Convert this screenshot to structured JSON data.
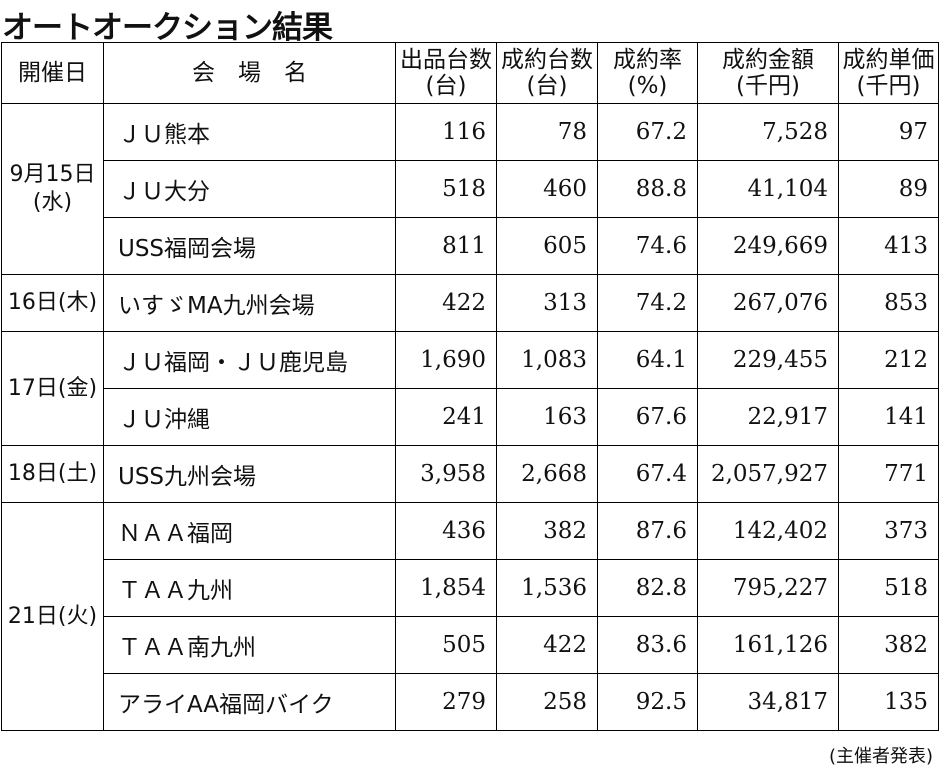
{
  "title": "オートオークション結果",
  "header": [
    [
      "開催日"
    ],
    [
      "会　場　名"
    ],
    [
      "出品台数",
      "(台)"
    ],
    [
      "成約台数",
      "(台)"
    ],
    [
      "成約率",
      "(%)"
    ],
    [
      "成約金額",
      "(千円)"
    ],
    [
      "成約単価",
      "(千円)"
    ]
  ],
  "groups": [
    {
      "date": [
        "9月15日",
        "(水)"
      ],
      "rows": [
        [
          "ＪＵ熊本",
          "116",
          "78",
          "67.2",
          "7,528",
          "97"
        ],
        [
          "ＪＵ大分",
          "518",
          "460",
          "88.8",
          "41,104",
          "89"
        ],
        [
          "USS福岡会場",
          "811",
          "605",
          "74.6",
          "249,669",
          "413"
        ]
      ]
    },
    {
      "date": [
        "16日(木)"
      ],
      "rows": [
        [
          "いすゞMA九州会場",
          "422",
          "313",
          "74.2",
          "267,076",
          "853"
        ]
      ]
    },
    {
      "date": [
        "17日(金)"
      ],
      "rows": [
        [
          "ＪＵ福岡・ＪＵ鹿児島",
          "1,690",
          "1,083",
          "64.1",
          "229,455",
          "212"
        ],
        [
          "ＪＵ沖縄",
          "241",
          "163",
          "67.6",
          "22,917",
          "141"
        ]
      ]
    },
    {
      "date": [
        "18日(土)"
      ],
      "rows": [
        [
          "USS九州会場",
          "3,958",
          "2,668",
          "67.4",
          "2,057,927",
          "771"
        ]
      ]
    },
    {
      "date": [
        "21日(火)"
      ],
      "rows": [
        [
          "ＮＡＡ福岡",
          "436",
          "382",
          "87.6",
          "142,402",
          "373"
        ],
        [
          "ＴＡＡ九州",
          "1,854",
          "1,536",
          "82.8",
          "795,227",
          "518"
        ],
        [
          "ＴＡＡ南九州",
          "505",
          "422",
          "83.6",
          "161,126",
          "382"
        ],
        [
          "アライAA福岡バイク",
          "279",
          "258",
          "92.5",
          "34,817",
          "135"
        ]
      ]
    }
  ],
  "footer": "(主催者発表)"
}
